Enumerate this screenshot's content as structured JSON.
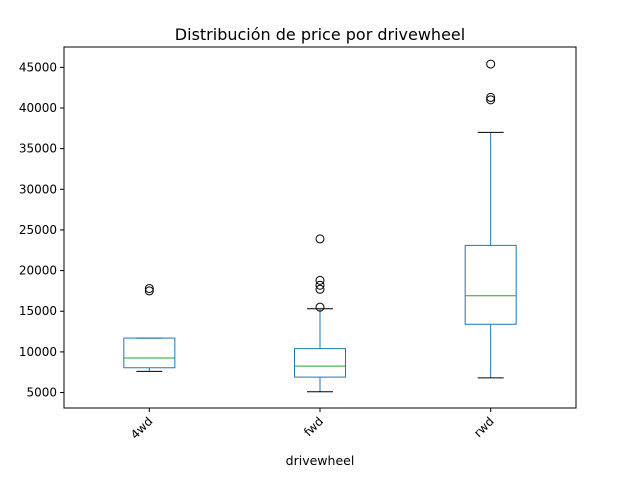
{
  "chart_data": {
    "type": "boxplot",
    "title": "Distribución de price por drivewheel",
    "xlabel": "drivewheel",
    "ylabel": "",
    "ylim": [
      3100,
      47500
    ],
    "yticks": [
      5000,
      10000,
      15000,
      20000,
      25000,
      30000,
      35000,
      40000,
      45000
    ],
    "categories": [
      "4wd",
      "fwd",
      "rwd"
    ],
    "boxes": [
      {
        "category": "4wd",
        "whislo": 7600,
        "q1": 8050,
        "median": 9250,
        "q3": 11700,
        "whishi": 11700,
        "fliers": [
          17500,
          17800
        ]
      },
      {
        "category": "fwd",
        "whislo": 5100,
        "q1": 6900,
        "median": 8250,
        "q3": 10400,
        "whishi": 15300,
        "fliers": [
          15500,
          17700,
          18200,
          18800,
          23900
        ]
      },
      {
        "category": "rwd",
        "whislo": 6800,
        "q1": 13400,
        "median": 16900,
        "q3": 23100,
        "whishi": 37000,
        "fliers": [
          41000,
          41300,
          45400
        ]
      }
    ],
    "colors": {
      "box": "#1f77b4",
      "median": "#2ca02c",
      "whisker": "#1f77b4",
      "cap": "#000000",
      "flier": "#000000"
    },
    "grid": false,
    "xtick_rotation": 45
  }
}
